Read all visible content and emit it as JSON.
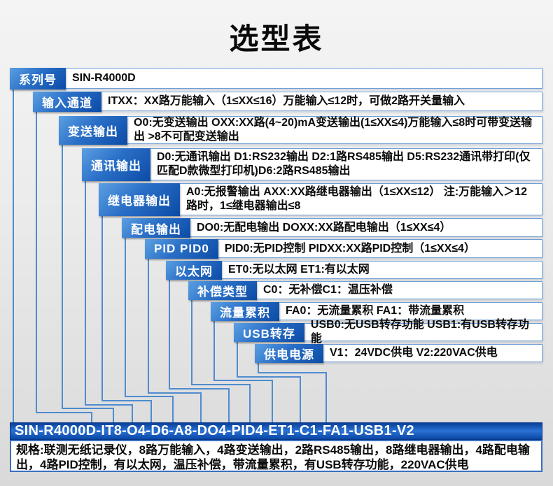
{
  "title": "选型表",
  "selector_rows": [
    {
      "label": "系列号",
      "text": "SIN-R4000D"
    },
    {
      "label": "输入通道",
      "text": "ITXX：XX路万能输入（1≤XX≤16）万能输入≤12时，可做2路开关量输入"
    },
    {
      "label": "变送输出",
      "text": "O0:无变送输出 OXX:XX路(4~20)mA变送输出(1≤XX≤4)万能输入≤8时可带变送输出 >8不可配变送输出"
    },
    {
      "label": "通讯输出",
      "text": "D0:无通讯输出 D1:RS232输出 D2:1路RS485输出 D5:RS232通讯带打印(仅匹配D款微型打印机)D6:2路RS485输出"
    },
    {
      "label": "继电器输出",
      "text": "A0:无报警输出 AXX:XX路继电器输出（1≤XX≤12） 注:万能输入＞12路时，1≤继电器输出≤8"
    },
    {
      "label": "配电输出",
      "text": "DO0:无配电输出 DOXX:XX路配电输出（1≤XX≤4）"
    },
    {
      "label": "PID PID0",
      "text": "PID0:无PID控制 PIDXX:XX路PID控制（1≤XX≤4）"
    },
    {
      "label": "以太网",
      "text": "ET0:无以太网 ET1:有以太网"
    },
    {
      "label": "补偿类型",
      "text": "C0：无补偿C1：温压补偿"
    },
    {
      "label": "流量累积",
      "text": "FA0：无流量累积 FA1：带流量累积"
    },
    {
      "label": "USB转存",
      "text": "USB0:无USB转存功能 USB1:有USB转存功能"
    },
    {
      "label": "供电电源",
      "text": "V1：24VDC供电 V2:220VAC供电"
    }
  ],
  "model_code": "SIN-R4000D-IT8-O4-D6-A8-DO4-PID4-ET1-C1-FA1-USB1-V2",
  "spec_text": "规格:联测无纸记录仪，8路万能输入，4路变送输出，2路RS485输出，8路继电器输出，4路配电输出，4路PID控制，有以太网，温压补偿，带流量累积，有USB转存功能，220VAC供电",
  "colors": {
    "label_blue_top": "#5ba0e2",
    "label_blue_bottom": "#0b4ba6",
    "bar_blue_mid": "#2a72d4",
    "bar_blue_edge": "#083f97",
    "connector_blue": "#4f8cd0",
    "row_border_blue": "#6f9fd6",
    "text_black": "#0a0a0a",
    "background_gray": "#e6e6e6"
  }
}
